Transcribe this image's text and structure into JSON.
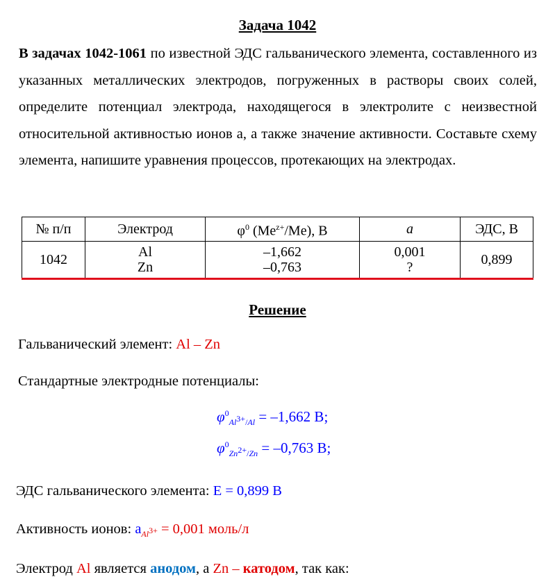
{
  "title": "Задача 1042",
  "intro": {
    "bold": "В задачах 1042-1061",
    "rest": " по известной ЭДС гальванического элемента, составленного из указанных металлических электродов, погруженных в растворы своих солей, определите потенциал электрода, находящегося в электролите с неизвестной относительной активностью ионов а, а также значение активности. Составьте схему элемента, напишите уравнения процессов, протекающих на электродах."
  },
  "table": {
    "headers": [
      "№ п/п",
      "Электрод",
      "φ⁰ (Meᶻ⁺/Me), В",
      "a",
      "ЭДС, В"
    ],
    "header_phi": {
      "phi": "φ",
      "sup0": "0",
      "me": " (Me",
      "z": "z+",
      "rest": "/Me), В"
    },
    "row": {
      "num": "1042",
      "electrodes": [
        "Al",
        "Zn"
      ],
      "potentials": [
        "–1,662",
        "–0,763"
      ],
      "activity": [
        "0,001",
        "?"
      ],
      "emf": "0,899"
    }
  },
  "solution_title": "Решение",
  "galvanic": {
    "label": "Гальванический элемент: ",
    "value": "Al – Zn"
  },
  "standard_label": "Стандартные электродные потенциалы:",
  "formulas": [
    {
      "phi": "φ",
      "sup": "0",
      "sub_ion": "Al",
      "sub_charge": "3+",
      "sub_metal": "Al",
      "value": "= –1,662 В;"
    },
    {
      "phi": "φ",
      "sup": "0",
      "sub_ion": "Zn",
      "sub_charge": "2+",
      "sub_metal": "Zn",
      "value": "= –0,763 В;"
    }
  ],
  "emf": {
    "label": "ЭДС гальванического элемента: ",
    "symbol": "E",
    "value": "= 0,899 В"
  },
  "activity": {
    "label": "Активность ионов: ",
    "symbol": "a",
    "sub": "Al",
    "sub_charge": "3+",
    "value": "= 0,001 моль/л"
  },
  "last_line": {
    "t1": "Электрод ",
    "al": "Al",
    "t2": " является ",
    "anode": "анодом",
    "t3": ", а ",
    "zn": "Zn –",
    "t4": " ",
    "cathode": "катодом",
    "t5": ", так как:"
  },
  "colors": {
    "red": "#e00000",
    "blue": "#0000ff",
    "dark_blue": "#0070c0",
    "table_underline": "#e0101c"
  }
}
